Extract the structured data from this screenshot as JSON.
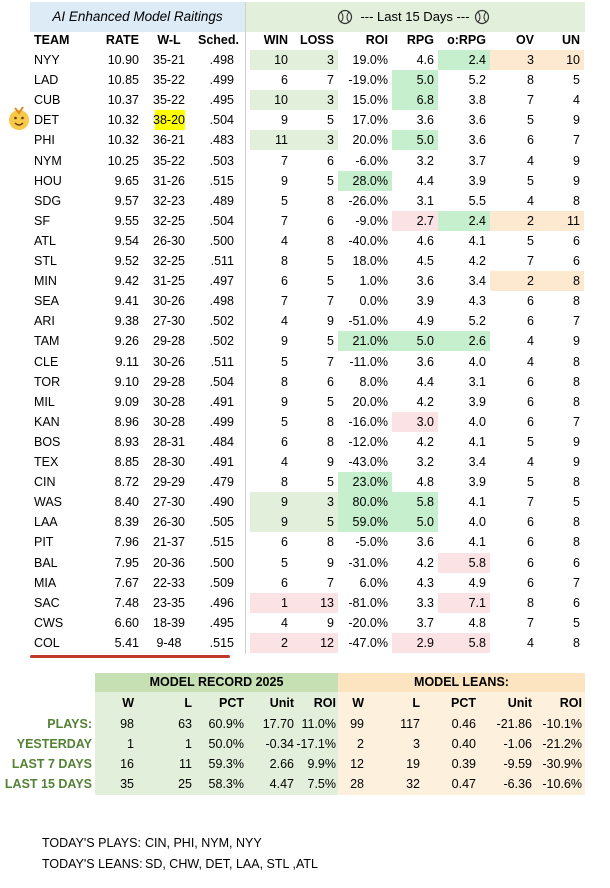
{
  "main_table": {
    "title": "AI Enhanced Model Raitings",
    "section_title": "--- Last 15 Days ---",
    "headers": [
      "TEAM",
      "RATE",
      "W-L",
      "Sched.",
      "WIN",
      "LOSS",
      "ROI",
      "RPG",
      "o:RPG",
      "OV",
      "UN"
    ],
    "rows": [
      [
        "NYY",
        "10.90",
        "35-21",
        ".498",
        "10",
        "3",
        "19.0%",
        "4.6",
        "2.4",
        "3",
        "10"
      ],
      [
        "LAD",
        "10.85",
        "35-22",
        ".499",
        "6",
        "7",
        "-19.0%",
        "5.0",
        "5.2",
        "8",
        "5"
      ],
      [
        "CUB",
        "10.37",
        "35-22",
        ".495",
        "10",
        "3",
        "15.0%",
        "6.8",
        "3.8",
        "7",
        "4"
      ],
      [
        "DET",
        "10.32",
        "38-20",
        ".504",
        "9",
        "5",
        "17.0%",
        "3.6",
        "3.6",
        "5",
        "9"
      ],
      [
        "PHI",
        "10.32",
        "36-21",
        ".483",
        "11",
        "3",
        "20.0%",
        "5.0",
        "3.6",
        "6",
        "7"
      ],
      [
        "NYM",
        "10.25",
        "35-22",
        ".503",
        "7",
        "6",
        "-6.0%",
        "3.2",
        "3.7",
        "4",
        "9"
      ],
      [
        "HOU",
        "9.65",
        "31-26",
        ".515",
        "9",
        "5",
        "28.0%",
        "4.4",
        "3.9",
        "5",
        "9"
      ],
      [
        "SDG",
        "9.57",
        "32-23",
        ".489",
        "5",
        "8",
        "-26.0%",
        "3.1",
        "5.5",
        "4",
        "8"
      ],
      [
        "SF",
        "9.55",
        "32-25",
        ".504",
        "7",
        "6",
        "-9.0%",
        "2.7",
        "2.4",
        "2",
        "11"
      ],
      [
        "ATL",
        "9.54",
        "26-30",
        ".500",
        "4",
        "8",
        "-40.0%",
        "4.6",
        "4.1",
        "5",
        "6"
      ],
      [
        "STL",
        "9.52",
        "32-25",
        ".511",
        "8",
        "5",
        "18.0%",
        "4.5",
        "4.2",
        "7",
        "6"
      ],
      [
        "MIN",
        "9.42",
        "31-25",
        ".497",
        "6",
        "5",
        "1.0%",
        "3.6",
        "3.4",
        "2",
        "8"
      ],
      [
        "SEA",
        "9.41",
        "30-26",
        ".498",
        "7",
        "7",
        "0.0%",
        "3.9",
        "4.3",
        "6",
        "8"
      ],
      [
        "ARI",
        "9.38",
        "27-30",
        ".502",
        "4",
        "9",
        "-51.0%",
        "4.9",
        "5.2",
        "6",
        "7"
      ],
      [
        "TAM",
        "9.26",
        "29-28",
        ".502",
        "9",
        "5",
        "21.0%",
        "5.0",
        "2.6",
        "4",
        "9"
      ],
      [
        "CLE",
        "9.11",
        "30-26",
        ".511",
        "5",
        "7",
        "-11.0%",
        "3.6",
        "4.0",
        "4",
        "8"
      ],
      [
        "TOR",
        "9.10",
        "29-28",
        ".504",
        "8",
        "6",
        "8.0%",
        "4.4",
        "3.1",
        "6",
        "8"
      ],
      [
        "MIL",
        "9.09",
        "30-28",
        ".491",
        "9",
        "5",
        "20.0%",
        "4.2",
        "3.9",
        "6",
        "8"
      ],
      [
        "KAN",
        "8.96",
        "30-28",
        ".499",
        "5",
        "8",
        "-16.0%",
        "3.0",
        "4.0",
        "6",
        "7"
      ],
      [
        "BOS",
        "8.93",
        "28-31",
        ".484",
        "6",
        "8",
        "-12.0%",
        "4.2",
        "4.1",
        "5",
        "9"
      ],
      [
        "TEX",
        "8.85",
        "28-30",
        ".491",
        "4",
        "9",
        "-43.0%",
        "3.2",
        "3.4",
        "4",
        "9"
      ],
      [
        "CIN",
        "8.72",
        "29-29",
        ".479",
        "8",
        "5",
        "23.0%",
        "4.8",
        "3.9",
        "5",
        "8"
      ],
      [
        "WAS",
        "8.40",
        "27-30",
        ".490",
        "9",
        "3",
        "80.0%",
        "5.8",
        "4.1",
        "7",
        "5"
      ],
      [
        "LAA",
        "8.39",
        "26-30",
        ".505",
        "9",
        "5",
        "59.0%",
        "5.0",
        "4.0",
        "6",
        "8"
      ],
      [
        "PIT",
        "7.96",
        "21-37",
        ".515",
        "6",
        "8",
        "-5.0%",
        "3.6",
        "4.1",
        "6",
        "8"
      ],
      [
        "BAL",
        "7.95",
        "20-36",
        ".500",
        "5",
        "9",
        "-31.0%",
        "4.2",
        "5.8",
        "6",
        "6"
      ],
      [
        "MIA",
        "7.67",
        "22-33",
        ".509",
        "6",
        "7",
        "6.0%",
        "4.3",
        "4.9",
        "6",
        "7"
      ],
      [
        "SAC",
        "7.48",
        "23-35",
        ".496",
        "1",
        "13",
        "-81.0%",
        "3.3",
        "7.1",
        "8",
        "6"
      ],
      [
        "CWS",
        "6.60",
        "18-39",
        ".495",
        "4",
        "9",
        "-20.0%",
        "3.7",
        "4.8",
        "7",
        "5"
      ],
      [
        "COL",
        "5.41",
        "9-48",
        ".515",
        "2",
        "12",
        "-47.0%",
        "2.9",
        "5.8",
        "4",
        "8"
      ]
    ]
  },
  "summary_table": {
    "left_title": "MODEL RECORD 2025",
    "right_title": "MODEL LEANS:",
    "headers": [
      "W",
      "L",
      "PCT",
      "Unit",
      "ROI",
      "W",
      "L",
      "PCT",
      "Unit",
      "ROI"
    ],
    "rows": [
      {
        "label": "PLAYS:",
        "cells": [
          "98",
          "63",
          "60.9%",
          "17.70",
          "11.0%",
          "99",
          "117",
          "0.46",
          "-21.86",
          "-10.1%"
        ]
      },
      {
        "label": "YESTERDAY",
        "cells": [
          "1",
          "1",
          "50.0%",
          "-0.34",
          "-17.1%",
          "2",
          "3",
          "0.40",
          "-1.06",
          "-21.2%"
        ]
      },
      {
        "label": "LAST 7 DAYS",
        "cells": [
          "16",
          "11",
          "59.3%",
          "2.66",
          "9.9%",
          "12",
          "19",
          "0.39",
          "-9.59",
          "-30.9%"
        ]
      },
      {
        "label": "LAST 15 DAYS",
        "cells": [
          "35",
          "25",
          "58.3%",
          "4.47",
          "7.5%",
          "28",
          "32",
          "0.47",
          "-6.36",
          "-10.6%"
        ]
      }
    ]
  },
  "footer": {
    "plays_label": "TODAY'S PLAYS:",
    "plays": "CIN, PHI, NYM, NYY",
    "leans_label": "TODAY'S LEANS:",
    "leans": "SD, CHW, DET, LAA, STL ,ATL"
  }
}
